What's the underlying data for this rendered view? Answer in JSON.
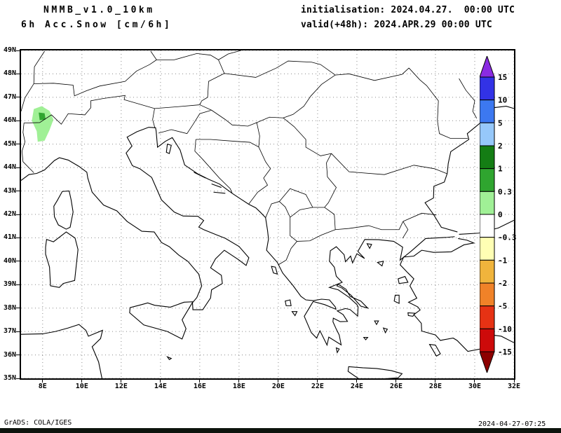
{
  "header": {
    "model": "NMMB_v1.0_10km",
    "field": "6h Acc.Snow [cm/6h]",
    "init": "initialisation: 2024.04.27.  00:00 UTC",
    "valid": "valid(+48h): 2024.APR.29 00:00 UTC"
  },
  "map": {
    "projection": "latlon",
    "lon_range": [
      6.9,
      32.0
    ],
    "lat_range": [
      35.0,
      49.0
    ],
    "grid_style": "dotted",
    "lat_ticks": [
      {
        "label": "49N",
        "value": 49
      },
      {
        "label": "48N",
        "value": 48
      },
      {
        "label": "47N",
        "value": 47
      },
      {
        "label": "46N",
        "value": 46
      },
      {
        "label": "45N",
        "value": 45
      },
      {
        "label": "44N",
        "value": 44
      },
      {
        "label": "43N",
        "value": 43
      },
      {
        "label": "42N",
        "value": 42
      },
      {
        "label": "41N",
        "value": 41
      },
      {
        "label": "40N",
        "value": 40
      },
      {
        "label": "39N",
        "value": 39
      },
      {
        "label": "38N",
        "value": 38
      },
      {
        "label": "37N",
        "value": 37
      },
      {
        "label": "36N",
        "value": 36
      },
      {
        "label": "35N",
        "value": 35
      }
    ],
    "lon_ticks": [
      {
        "label": "8E",
        "value": 8
      },
      {
        "label": "10E",
        "value": 10
      },
      {
        "label": "12E",
        "value": 12
      },
      {
        "label": "14E",
        "value": 14
      },
      {
        "label": "16E",
        "value": 16
      },
      {
        "label": "18E",
        "value": 18
      },
      {
        "label": "20E",
        "value": 20
      },
      {
        "label": "22E",
        "value": 22
      },
      {
        "label": "24E",
        "value": 24
      },
      {
        "label": "26E",
        "value": 26
      },
      {
        "label": "28E",
        "value": 28
      },
      {
        "label": "30E",
        "value": 30
      },
      {
        "label": "32E",
        "value": 32
      }
    ],
    "snow_patches": [
      {
        "value_range": "0.3-1 cm",
        "color": "#a0f096",
        "points": [
          [
            7.55,
            46.5
          ],
          [
            7.95,
            46.62
          ],
          [
            8.35,
            46.42
          ],
          [
            8.55,
            46.05
          ],
          [
            8.35,
            45.6
          ],
          [
            8.1,
            45.15
          ],
          [
            7.75,
            45.1
          ],
          [
            7.7,
            45.55
          ],
          [
            7.45,
            46.0
          ]
        ]
      },
      {
        "value_range": "1-2 cm",
        "color": "#2fa52f",
        "points": [
          [
            7.8,
            46.35
          ],
          [
            8.1,
            46.32
          ],
          [
            8.15,
            46.05
          ],
          [
            7.85,
            46.02
          ]
        ]
      }
    ]
  },
  "colorbar": {
    "levels": [
      "15",
      "10",
      "5",
      "2",
      "1",
      "0.3",
      "0",
      "-0.3",
      "-1",
      "-2",
      "-5",
      "-10",
      "-15"
    ],
    "colors": [
      "#8a2be2",
      "#3232e6",
      "#3c78f0",
      "#96c8fa",
      "#147d14",
      "#2fa52f",
      "#a0f096",
      "#ffffff",
      "#ffffb4",
      "#f0b43c",
      "#f08228",
      "#e63214",
      "#cd0a0a",
      "#8c0000"
    ]
  },
  "footer": {
    "credit": "GrADS: COLA/IGES",
    "timestamp": "2024-04-27-07:25"
  }
}
